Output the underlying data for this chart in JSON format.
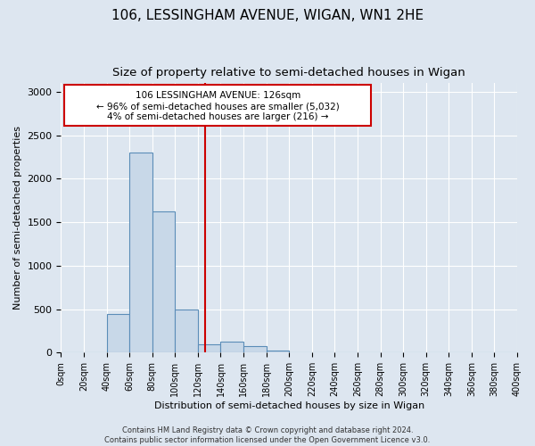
{
  "title": "106, LESSINGHAM AVENUE, WIGAN, WN1 2HE",
  "subtitle": "Size of property relative to semi-detached houses in Wigan",
  "xlabel": "Distribution of semi-detached houses by size in Wigan",
  "ylabel": "Number of semi-detached properties",
  "footer_line1": "Contains HM Land Registry data © Crown copyright and database right 2024.",
  "footer_line2": "Contains public sector information licensed under the Open Government Licence v3.0.",
  "bin_edges": [
    0,
    20,
    40,
    60,
    80,
    100,
    120,
    140,
    160,
    180,
    200,
    220,
    240,
    260,
    280,
    300,
    320,
    340,
    360,
    380,
    400
  ],
  "bin_heights": [
    5,
    0,
    450,
    2300,
    1625,
    500,
    100,
    130,
    80,
    20,
    5,
    0,
    0,
    0,
    0,
    0,
    0,
    0,
    0,
    0
  ],
  "bar_color": "#c8d8e8",
  "bar_edge_color": "#5b8db8",
  "property_size": 126,
  "red_line_color": "#cc0000",
  "annotation_text_line1": "106 LESSINGHAM AVENUE: 126sqm",
  "annotation_text_line2": "← 96% of semi-detached houses are smaller (5,032)",
  "annotation_text_line3": "4% of semi-detached houses are larger (216) →",
  "annotation_box_color": "#cc0000",
  "annotation_box_facecolor": "white",
  "ylim": [
    0,
    3100
  ],
  "xlim": [
    0,
    400
  ],
  "background_color": "#dde6f0",
  "title_fontsize": 11,
  "subtitle_fontsize": 9.5
}
